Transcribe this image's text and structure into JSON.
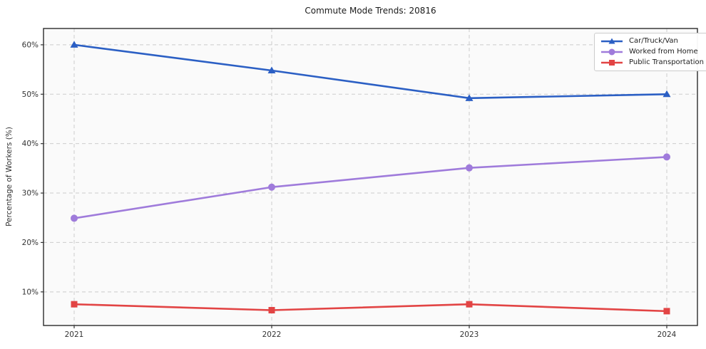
{
  "chart_data": {
    "type": "line",
    "title": "Commute Mode Trends: 20816",
    "xlabel": "",
    "ylabel": "Percentage of Workers (%)",
    "categories": [
      "2021",
      "2022",
      "2023",
      "2024"
    ],
    "xtick_labels": [
      "2021",
      "2022",
      "2023",
      "2024"
    ],
    "yticks": [
      10,
      20,
      30,
      40,
      50,
      60
    ],
    "ytick_labels": [
      "10%",
      "20%",
      "30%",
      "40%",
      "50%",
      "60%"
    ],
    "ylim": [
      3.2,
      63.3
    ],
    "grid": true,
    "grid_style": "dashed",
    "legend_position": "upper right",
    "series": [
      {
        "name": "Car/Truck/Van",
        "color": "#2b5fc4",
        "marker": "triangle",
        "values": [
          60.0,
          54.8,
          49.2,
          50.0
        ]
      },
      {
        "name": "Worked from Home",
        "color": "#9f7bdb",
        "marker": "circle",
        "values": [
          24.9,
          31.2,
          35.1,
          37.3
        ]
      },
      {
        "name": "Public Transportation",
        "color": "#e24444",
        "marker": "square",
        "values": [
          7.5,
          6.3,
          7.5,
          6.1
        ]
      }
    ]
  }
}
